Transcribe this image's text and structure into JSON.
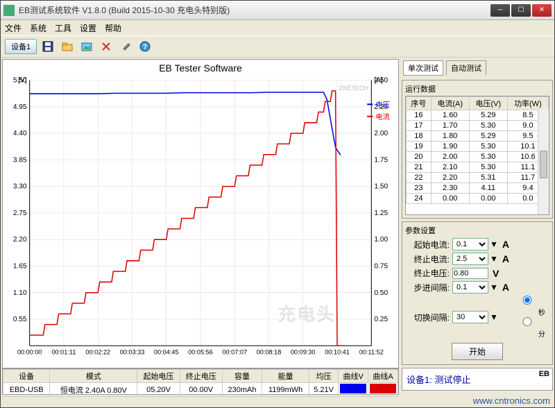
{
  "window": {
    "title": "EB测试系统软件 V1.8.0 (Build 2015-10-30 充电头特别版)"
  },
  "menu": [
    "文件",
    "系统",
    "工具",
    "设置",
    "帮助"
  ],
  "device_tab": "设备1",
  "chart": {
    "title": "EB Tester Software",
    "watermark_tag": "ZKETECH",
    "left_axis_label": "[V]",
    "right_axis_label": "[A]",
    "left_ticks": [
      0.55,
      1.1,
      1.65,
      2.2,
      2.75,
      3.3,
      3.85,
      4.4,
      4.95,
      5.5
    ],
    "right_ticks": [
      0.25,
      0.5,
      0.75,
      1.0,
      1.25,
      1.5,
      1.75,
      2.0,
      2.25,
      2.5
    ],
    "x_labels": [
      "00:00:00",
      "00:01:11",
      "00:02:22",
      "00:03:33",
      "00:04:45",
      "00:05:56",
      "00:07:07",
      "00:08:18",
      "00:09:30",
      "00:10:41",
      "00:11:52"
    ],
    "voltage_color": "#0000ee",
    "current_color": "#dd0000",
    "grid_color": "#e8cfe0",
    "bg_color": "#ffffff",
    "ylim_v": [
      0,
      5.5
    ],
    "ylim_a": [
      0,
      2.5
    ],
    "legend": {
      "voltage": "电压",
      "current": "电流"
    },
    "voltage_series": [
      [
        0,
        5.22
      ],
      [
        0.05,
        5.22
      ],
      [
        0.1,
        5.22
      ],
      [
        0.15,
        5.22
      ],
      [
        0.2,
        5.22
      ],
      [
        0.25,
        5.23
      ],
      [
        0.3,
        5.23
      ],
      [
        0.35,
        5.23
      ],
      [
        0.4,
        5.23
      ],
      [
        0.45,
        5.24
      ],
      [
        0.5,
        5.24
      ],
      [
        0.55,
        5.24
      ],
      [
        0.6,
        5.24
      ],
      [
        0.65,
        5.24
      ],
      [
        0.7,
        5.25
      ],
      [
        0.75,
        5.25
      ],
      [
        0.8,
        5.25
      ],
      [
        0.85,
        5.25
      ],
      [
        0.86,
        5.25
      ],
      [
        0.87,
        5.1
      ],
      [
        0.88,
        4.7
      ],
      [
        0.89,
        4.3
      ],
      [
        0.895,
        4.11
      ],
      [
        0.9,
        4.05
      ],
      [
        0.91,
        3.95
      ]
    ],
    "current_series": [
      [
        0,
        0.1
      ],
      [
        0.01,
        0.1
      ],
      [
        0.04,
        0.1
      ],
      [
        0.045,
        0.2
      ],
      [
        0.08,
        0.2
      ],
      [
        0.085,
        0.3
      ],
      [
        0.12,
        0.3
      ],
      [
        0.125,
        0.4
      ],
      [
        0.16,
        0.4
      ],
      [
        0.165,
        0.5
      ],
      [
        0.2,
        0.5
      ],
      [
        0.205,
        0.6
      ],
      [
        0.24,
        0.6
      ],
      [
        0.245,
        0.7
      ],
      [
        0.28,
        0.7
      ],
      [
        0.285,
        0.8
      ],
      [
        0.32,
        0.8
      ],
      [
        0.325,
        0.9
      ],
      [
        0.36,
        0.9
      ],
      [
        0.365,
        1.0
      ],
      [
        0.4,
        1.0
      ],
      [
        0.405,
        1.1
      ],
      [
        0.44,
        1.1
      ],
      [
        0.445,
        1.2
      ],
      [
        0.48,
        1.2
      ],
      [
        0.485,
        1.3
      ],
      [
        0.52,
        1.3
      ],
      [
        0.525,
        1.4
      ],
      [
        0.56,
        1.4
      ],
      [
        0.565,
        1.5
      ],
      [
        0.6,
        1.5
      ],
      [
        0.605,
        1.6
      ],
      [
        0.64,
        1.6
      ],
      [
        0.645,
        1.7
      ],
      [
        0.68,
        1.7
      ],
      [
        0.685,
        1.8
      ],
      [
        0.72,
        1.8
      ],
      [
        0.725,
        1.9
      ],
      [
        0.76,
        1.9
      ],
      [
        0.765,
        2.0
      ],
      [
        0.8,
        2.0
      ],
      [
        0.805,
        2.1
      ],
      [
        0.84,
        2.1
      ],
      [
        0.845,
        2.2
      ],
      [
        0.86,
        2.2
      ],
      [
        0.865,
        2.3
      ],
      [
        0.88,
        2.3
      ],
      [
        0.885,
        2.4
      ],
      [
        0.895,
        2.4
      ],
      [
        0.9,
        0.0
      ],
      [
        0.92,
        0.0
      ]
    ]
  },
  "summary": {
    "headers": [
      "设备",
      "模式",
      "起始电压",
      "终止电压",
      "容量",
      "能量",
      "均压",
      "曲线V",
      "曲线A"
    ],
    "row": [
      "EBD-USB",
      "恒电流  2.40A 0.80V",
      "05.20V",
      "00.00V",
      "230mAh",
      "1199mWh",
      "5.21V",
      "",
      ""
    ]
  },
  "right_tabs": {
    "single": "单次测试",
    "auto": "自动测试"
  },
  "run_data": {
    "title": "运行数据",
    "headers": [
      "序号",
      "电流(A)",
      "电压(V)",
      "功率(W)"
    ],
    "rows": [
      [
        "16",
        "1.60",
        "5.29",
        "8.5"
      ],
      [
        "17",
        "1.70",
        "5.30",
        "9.0"
      ],
      [
        "18",
        "1.80",
        "5.29",
        "9.5"
      ],
      [
        "19",
        "1.90",
        "5.30",
        "10.1"
      ],
      [
        "20",
        "2.00",
        "5.30",
        "10.6"
      ],
      [
        "21",
        "2.10",
        "5.30",
        "11.1"
      ],
      [
        "22",
        "2.20",
        "5.31",
        "11.7"
      ],
      [
        "23",
        "2.30",
        "4.11",
        "9.4"
      ],
      [
        "24",
        "0.00",
        "0.00",
        "0.0"
      ]
    ]
  },
  "params": {
    "title": "参数设置",
    "start_current": {
      "label": "起始电流:",
      "value": "0.1",
      "unit": "A"
    },
    "end_current": {
      "label": "终止电流:",
      "value": "2.5",
      "unit": "A"
    },
    "end_voltage": {
      "label": "终止电压:",
      "value": "0.80",
      "unit": "V"
    },
    "step_interval": {
      "label": "步进间隔:",
      "value": "0.1",
      "unit": "A"
    },
    "switch_interval": {
      "label": "切换间隔:",
      "value": "30"
    },
    "radio_sec": "秒",
    "radio_min": "分",
    "start_btn": "开始"
  },
  "status": {
    "tag": "EB",
    "text": "设备1: 测试停止"
  },
  "footer": "www.cntronics.com",
  "watermark": "充电头"
}
